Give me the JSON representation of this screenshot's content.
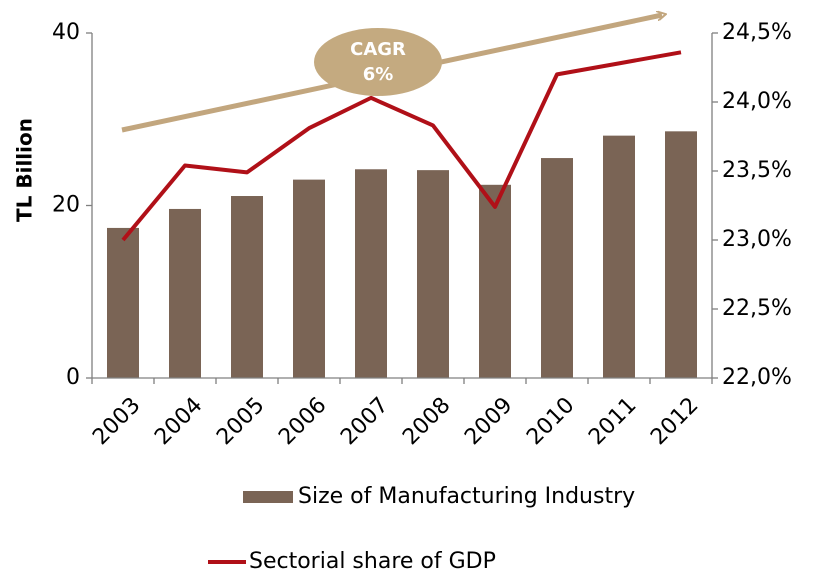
{
  "chart_data": {
    "type": "bar",
    "y_label": "TL Billion",
    "annotation": [
      "CAGR",
      "6%"
    ],
    "categories": [
      "2003",
      "2004",
      "2005",
      "2006",
      "2007",
      "2008",
      "2009",
      "2010",
      "2011",
      "2012"
    ],
    "series": [
      {
        "name": "Size of Manufacturing Industry",
        "type": "bar",
        "color": "#7a6455",
        "axis": "y",
        "values": [
          17.4,
          19.6,
          21.1,
          23.0,
          24.2,
          24.1,
          22.4,
          25.5,
          28.1,
          28.6
        ]
      },
      {
        "name": "Sectorial share of GDP",
        "type": "line",
        "color": "#b01018",
        "axis": "y2",
        "values": [
          23.0,
          23.54,
          23.49,
          23.81,
          24.03,
          23.83,
          23.24,
          24.2,
          24.28,
          24.36
        ]
      }
    ],
    "ylim": [
      0,
      40
    ],
    "yticks": [
      0,
      20,
      40
    ],
    "y2lim": [
      22.0,
      24.5
    ],
    "y2ticks": [
      {
        "value": 22.0,
        "label": "22,0%"
      },
      {
        "value": 22.5,
        "label": "22,5%"
      },
      {
        "value": 23.0,
        "label": "23,0%"
      },
      {
        "value": 23.5,
        "label": "23,5%"
      },
      {
        "value": 24.0,
        "label": "24,0%"
      },
      {
        "value": 24.5,
        "label": "24,5%"
      }
    ]
  }
}
